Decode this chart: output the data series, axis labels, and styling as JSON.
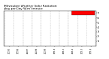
{
  "title": "Milwaukee Weather Solar Radiation",
  "subtitle": "Avg per Day W/m²/minute",
  "ylim": [
    0,
    7.5
  ],
  "yticks": [
    1,
    2,
    3,
    4,
    5,
    6,
    7
  ],
  "background": "#ffffff",
  "dot_color_main": "#ff0000",
  "dot_color_alt": "#000000",
  "legend_box_color": "#ff0000",
  "grid_color": "#888888",
  "title_fontsize": 3.2,
  "axis_fontsize": 2.5,
  "num_years": 10,
  "seed": 42,
  "monthly_pattern": [
    1.0,
    1.5,
    2.5,
    3.8,
    5.0,
    6.2,
    6.5,
    5.8,
    4.2,
    2.8,
    1.5,
    0.9
  ],
  "start_year": 2005
}
